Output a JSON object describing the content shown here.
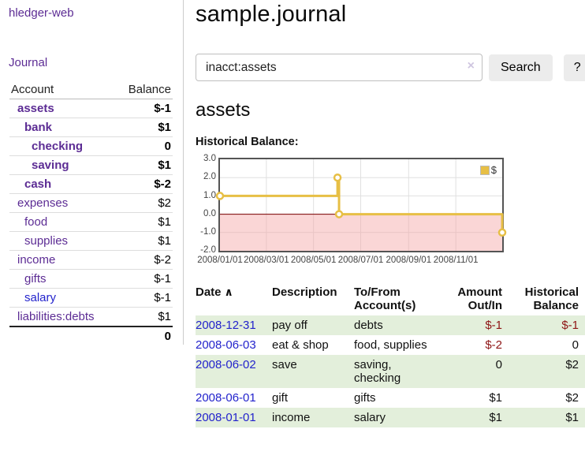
{
  "sidebar": {
    "app_title": "hledger-web",
    "journal_link": "Journal",
    "accounts_table": {
      "headers": {
        "account": "Account",
        "balance": "Balance"
      },
      "rows": [
        {
          "name": "assets",
          "balance": "$-1",
          "indent": 1,
          "bold": true,
          "name_color": "purple",
          "balance_style": "neg-strong"
        },
        {
          "name": "bank",
          "balance": "$1",
          "indent": 2,
          "bold": true,
          "name_color": "purple",
          "balance_style": "pos"
        },
        {
          "name": "checking",
          "balance": "0",
          "indent": 3,
          "bold": true,
          "name_color": "purple",
          "balance_style": "pos"
        },
        {
          "name": "saving",
          "balance": "$1",
          "indent": 3,
          "bold": true,
          "name_color": "purple",
          "balance_style": "pos"
        },
        {
          "name": "cash",
          "balance": "$-2",
          "indent": 2,
          "bold": true,
          "name_color": "purple",
          "balance_style": "neg-strong"
        },
        {
          "name": "expenses",
          "balance": "$2",
          "indent": 1,
          "bold": false,
          "name_color": "purple",
          "balance_style": "pos"
        },
        {
          "name": "food",
          "balance": "$1",
          "indent": 2,
          "bold": false,
          "name_color": "purple",
          "balance_style": "pos"
        },
        {
          "name": "supplies",
          "balance": "$1",
          "indent": 2,
          "bold": false,
          "name_color": "purple",
          "balance_style": "pos"
        },
        {
          "name": "income",
          "balance": "$-2",
          "indent": 1,
          "bold": false,
          "name_color": "purple",
          "balance_style": "neg-soft"
        },
        {
          "name": "gifts",
          "balance": "$-1",
          "indent": 2,
          "bold": false,
          "name_color": "purple",
          "balance_style": "neg-soft"
        },
        {
          "name": "salary",
          "balance": "$-1",
          "indent": 2,
          "bold": false,
          "name_color": "blue",
          "balance_style": "neg-soft"
        },
        {
          "name": "liabilities:debts",
          "balance": "$1",
          "indent": 1,
          "bold": false,
          "name_color": "purple",
          "balance_style": "pos"
        }
      ],
      "total": "0"
    }
  },
  "main": {
    "title": "sample.journal",
    "search": {
      "value": "inacct:assets",
      "clear_icon": "×",
      "button": "Search",
      "help_button": "?"
    },
    "account_heading": "assets",
    "chart_label": "Historical Balance:",
    "register": {
      "columns": [
        {
          "label": "Date",
          "align": "left",
          "sort_icon": "∧"
        },
        {
          "label": "Description",
          "align": "left"
        },
        {
          "label": "To/From Account(s)",
          "align": "left"
        },
        {
          "label": "Amount Out/In",
          "align": "right"
        },
        {
          "label": "Historical Balance",
          "align": "right"
        }
      ],
      "rows": [
        {
          "date": "2008-12-31",
          "description": "pay off",
          "accounts": "debts",
          "amount": "$-1",
          "balance": "$-1",
          "amount_negative": true,
          "balance_negative": true
        },
        {
          "date": "2008-06-03",
          "description": "eat & shop",
          "accounts": "food, supplies",
          "amount": "$-2",
          "balance": "0",
          "amount_negative": true,
          "balance_negative": false
        },
        {
          "date": "2008-06-02",
          "description": "save",
          "accounts": "saving, checking",
          "amount": "0",
          "balance": "$2",
          "amount_negative": false,
          "balance_negative": false
        },
        {
          "date": "2008-06-01",
          "description": "gift",
          "accounts": "gifts",
          "amount": "$1",
          "balance": "$2",
          "amount_negative": false,
          "balance_negative": false
        },
        {
          "date": "2008-01-01",
          "description": "income",
          "accounts": "salary",
          "amount": "$1",
          "balance": "$1",
          "amount_negative": false,
          "balance_negative": false
        }
      ]
    }
  },
  "chart_data": {
    "type": "line",
    "step": true,
    "title": "Historical Balance:",
    "series": [
      {
        "name": "$",
        "color": "#e7bf45",
        "points": [
          {
            "x": "2008-01-01",
            "y": 1
          },
          {
            "x": "2008-06-01",
            "y": 2
          },
          {
            "x": "2008-06-03",
            "y": 0
          },
          {
            "x": "2008-12-31",
            "y": -1
          }
        ]
      }
    ],
    "xrange": [
      "2008-01-01",
      "2008-12-31"
    ],
    "ylim": [
      -2,
      3
    ],
    "y_ticks": [
      "3.0",
      "2.0",
      "1.0",
      "0.0",
      "-1.0",
      "-2.0"
    ],
    "x_ticks": [
      "2008/01/01",
      "2008/03/01",
      "2008/05/01",
      "2008/07/01",
      "2008/09/01",
      "2008/11/01"
    ],
    "grid": true,
    "legend_position": "top-right",
    "negative_region": {
      "below": 0,
      "color": "rgba(245,165,165,0.45)",
      "zero_line_color": "#7a0000"
    }
  },
  "colors": {
    "link_purple": "#5c2c94",
    "link_blue": "#2323cc",
    "negative_strong": "#8e1515",
    "negative_soft": "#bb6f70",
    "row_zebra_green": "#e3efdb",
    "chart_gold": "#e7bf45",
    "chart_negative_pink": "#f8d6d6",
    "chart_zero_line": "#7a0000"
  }
}
